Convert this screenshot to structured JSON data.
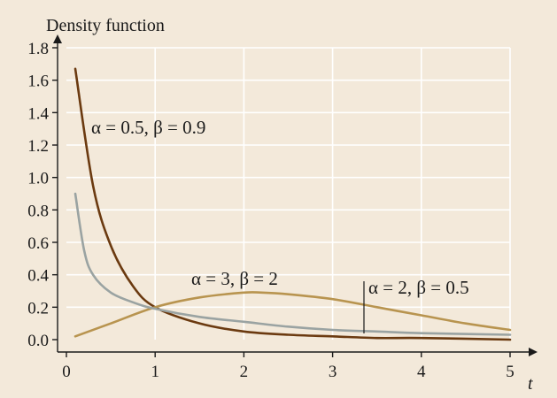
{
  "chart_data": {
    "type": "line",
    "title": "",
    "ylabel": "Density function",
    "xlabel": "t",
    "xlim": [
      0,
      5
    ],
    "ylim": [
      0,
      1.8
    ],
    "x_ticks": [
      0,
      1,
      2,
      3,
      4,
      5
    ],
    "y_ticks": [
      0.0,
      0.2,
      0.4,
      0.6,
      0.8,
      1.0,
      1.2,
      1.4,
      1.6,
      1.8
    ],
    "y_tick_labels": [
      "0.0",
      "0.2",
      "0.4",
      "0.6",
      "0.8",
      "1.0",
      "1.2",
      "1.4",
      "1.6",
      "1.8"
    ],
    "grid": true,
    "legend": "none",
    "series": [
      {
        "color": "#6b3a10",
        "x": [
          0.1,
          0.3,
          0.5,
          0.75,
          1.0,
          1.5,
          2.0,
          2.5,
          3.0,
          3.5,
          4.0,
          5.0
        ],
        "y": [
          1.67,
          0.95,
          0.58,
          0.33,
          0.2,
          0.1,
          0.05,
          0.03,
          0.02,
          0.01,
          0.01,
          0.0
        ]
      },
      {
        "color": "#b8944f",
        "x": [
          0.1,
          0.5,
          1.0,
          1.5,
          2.0,
          2.2,
          2.5,
          3.0,
          3.5,
          4.0,
          4.5,
          5.0
        ],
        "y": [
          0.02,
          0.1,
          0.2,
          0.26,
          0.29,
          0.29,
          0.28,
          0.25,
          0.2,
          0.15,
          0.1,
          0.06
        ]
      },
      {
        "color": "#9aa3a2",
        "x": [
          0.1,
          0.2,
          0.3,
          0.5,
          0.75,
          1.0,
          1.5,
          2.0,
          2.5,
          3.0,
          3.5,
          4.0,
          5.0
        ],
        "y": [
          0.9,
          0.55,
          0.4,
          0.29,
          0.23,
          0.19,
          0.14,
          0.11,
          0.08,
          0.06,
          0.05,
          0.04,
          0.03
        ]
      }
    ],
    "annotations": [
      {
        "text": "α = 0.5, β = 0.9"
      },
      {
        "text": "α = 3, β = 2"
      },
      {
        "text": "α = 2, β = 0.5"
      }
    ]
  }
}
